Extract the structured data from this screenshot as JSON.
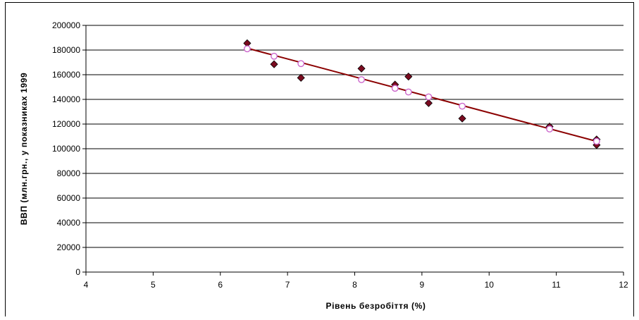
{
  "chart_data": {
    "type": "scatter",
    "title": "",
    "xlabel": "Рівень безробіття (%)",
    "ylabel": "ВВП (млн.грн., у показниках 1999",
    "xlim": [
      4,
      12
    ],
    "ylim": [
      0,
      200000
    ],
    "x_ticks": [
      "4",
      "5",
      "6",
      "7",
      "8",
      "9",
      "10",
      "11",
      "12"
    ],
    "y_ticks": [
      "0",
      "20000",
      "40000",
      "60000",
      "80000",
      "100000",
      "120000",
      "140000",
      "160000",
      "180000",
      "200000"
    ],
    "grid": "horizontal",
    "series": [
      {
        "marker": "diamond",
        "color": "#7a0a1f",
        "points": [
          [
            6.4,
            185500
          ],
          [
            6.8,
            168500
          ],
          [
            7.2,
            157500
          ],
          [
            8.1,
            165000
          ],
          [
            8.6,
            152000
          ],
          [
            8.8,
            158500
          ],
          [
            9.1,
            137000
          ],
          [
            9.6,
            124500
          ],
          [
            10.9,
            118000
          ],
          [
            11.6,
            107500
          ],
          [
            11.6,
            103000
          ]
        ]
      },
      {
        "marker": "circle",
        "color": "#cc66cc",
        "points": [
          [
            6.4,
            181000
          ],
          [
            6.8,
            175000
          ],
          [
            7.2,
            169000
          ],
          [
            8.1,
            156000
          ],
          [
            8.6,
            149000
          ],
          [
            8.8,
            146000
          ],
          [
            9.1,
            142000
          ],
          [
            9.6,
            134500
          ],
          [
            10.9,
            116000
          ],
          [
            11.6,
            106000
          ]
        ]
      }
    ],
    "trendline": {
      "color": "#8b0000",
      "x": [
        6.4,
        11.6
      ],
      "y": [
        181500,
        106000
      ]
    }
  }
}
